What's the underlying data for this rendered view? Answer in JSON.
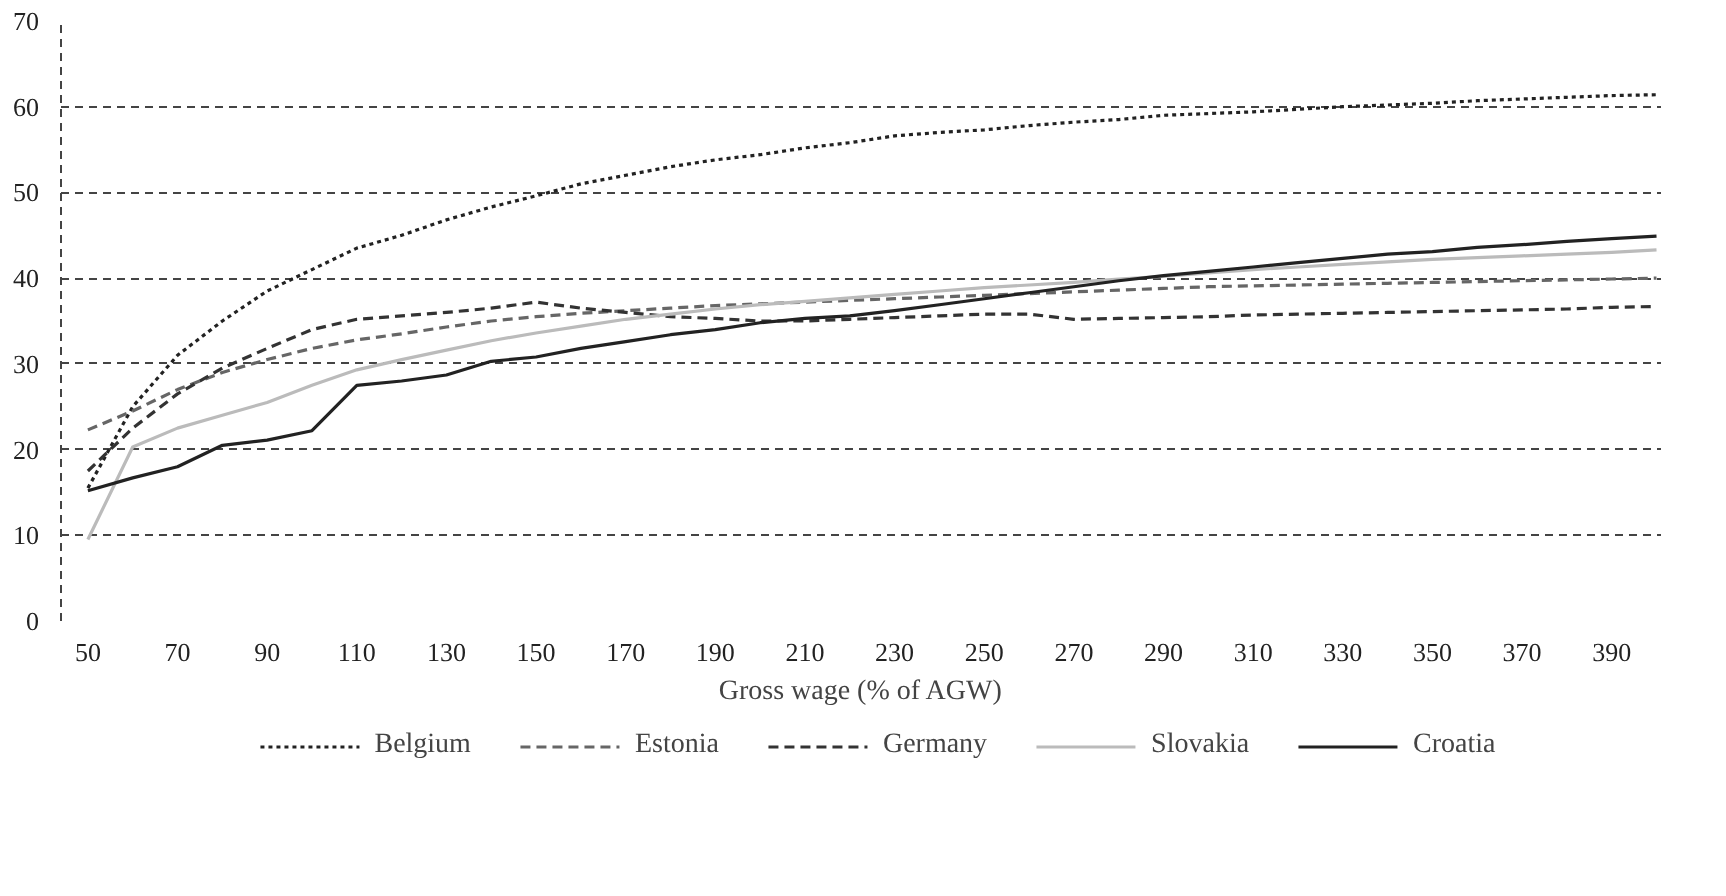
{
  "chart_data": {
    "type": "line",
    "xlabel": "Gross wage (% of AGW)",
    "x": [
      50,
      60,
      70,
      80,
      90,
      100,
      110,
      120,
      130,
      140,
      150,
      160,
      170,
      180,
      190,
      200,
      210,
      220,
      230,
      240,
      250,
      260,
      270,
      280,
      290,
      300,
      310,
      320,
      330,
      340,
      350,
      360,
      370,
      380,
      390,
      400
    ],
    "xlim": [
      44,
      401
    ],
    "xticks": [
      50,
      70,
      90,
      110,
      130,
      150,
      170,
      190,
      210,
      230,
      250,
      270,
      290,
      310,
      330,
      350,
      370,
      390
    ],
    "ylim": [
      0,
      70
    ],
    "yticks": [
      0,
      10,
      20,
      30,
      40,
      50,
      60,
      70
    ],
    "grid": "y",
    "legend": "bottom",
    "marker": "none",
    "series": [
      {
        "name": "Belgium",
        "color": "#222222",
        "line_style": "dotted",
        "values": [
          15.5,
          25,
          31,
          35,
          38.5,
          41,
          43.5,
          45,
          46.8,
          48.3,
          49.6,
          51,
          52,
          53,
          53.8,
          54.4,
          55.2,
          55.8,
          56.6,
          57,
          57.3,
          57.8,
          58.2,
          58.5,
          59,
          59.2,
          59.4,
          59.7,
          60,
          60.2,
          60.4,
          60.7,
          60.9,
          61.1,
          61.3,
          61.4
        ]
      },
      {
        "name": "Estonia",
        "color": "#666666",
        "line_style": "dashed",
        "values": [
          22.3,
          24.5,
          27,
          29,
          30.5,
          31.8,
          32.8,
          33.5,
          34.3,
          35,
          35.5,
          35.9,
          36.2,
          36.5,
          36.8,
          37,
          37.2,
          37.4,
          37.6,
          37.8,
          38,
          38.2,
          38.4,
          38.6,
          38.8,
          39,
          39.1,
          39.2,
          39.3,
          39.4,
          39.5,
          39.6,
          39.7,
          39.8,
          39.9,
          40
        ]
      },
      {
        "name": "Germany",
        "color": "#333333",
        "line_style": "dashed",
        "values": [
          17.5,
          22.5,
          26.5,
          29.5,
          31.8,
          34,
          35.2,
          35.6,
          36,
          36.5,
          37.2,
          36.5,
          36,
          35.5,
          35.3,
          35,
          35,
          35.2,
          35.4,
          35.6,
          35.8,
          35.8,
          35.2,
          35.3,
          35.4,
          35.5,
          35.7,
          35.8,
          35.9,
          36,
          36.1,
          36.2,
          36.3,
          36.4,
          36.6,
          36.7
        ]
      },
      {
        "name": "Slovakia",
        "color": "#bbbbbb",
        "line_style": "solid",
        "values": [
          9.5,
          20.3,
          22.5,
          24,
          25.5,
          27.5,
          29.3,
          30.5,
          31.6,
          32.7,
          33.6,
          34.4,
          35.2,
          35.8,
          36.4,
          36.9,
          37.3,
          37.7,
          38.1,
          38.5,
          38.9,
          39.2,
          39.5,
          39.9,
          40.2,
          40.6,
          41,
          41.3,
          41.6,
          41.9,
          42.2,
          42.4,
          42.6,
          42.8,
          43,
          43.3
        ]
      },
      {
        "name": "Croatia",
        "color": "#222222",
        "line_style": "solid",
        "values": [
          15.2,
          16.7,
          18,
          20.5,
          21.1,
          22.2,
          27.5,
          28,
          28.7,
          30.3,
          30.8,
          31.8,
          32.6,
          33.4,
          34,
          34.8,
          35.3,
          35.6,
          36.2,
          36.9,
          37.6,
          38.3,
          39,
          39.7,
          40.3,
          40.8,
          41.3,
          41.8,
          42.3,
          42.8,
          43.1,
          43.6,
          43.9,
          44.3,
          44.6,
          44.9
        ]
      }
    ]
  }
}
